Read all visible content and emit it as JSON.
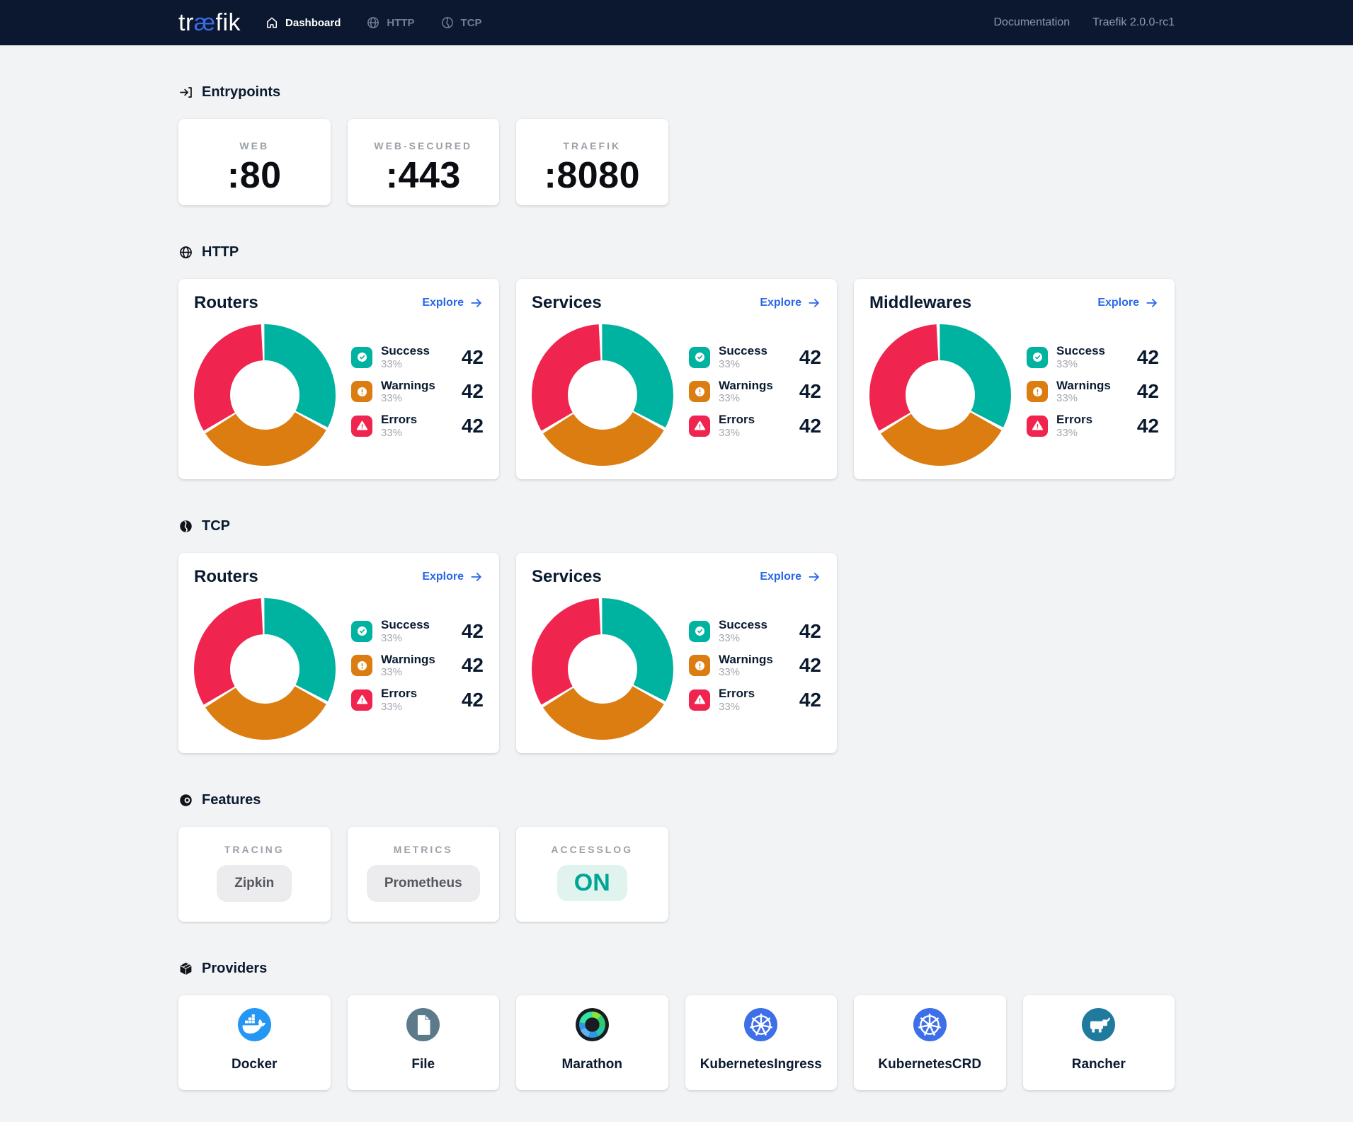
{
  "colors": {
    "header_bg": "#0b1830",
    "page_bg": "#f2f3f5",
    "accent_blue": "#2a67e8",
    "success": "#00b2a0",
    "warning": "#db7d11",
    "error": "#f0254f",
    "on_text": "#00a693",
    "on_bg": "#e1f3ef",
    "docker_blue": "#2496f3",
    "file_slate": "#5c7a8a",
    "kubernetes_blue": "#3d6fe8",
    "rancher_teal": "#1f7a9e"
  },
  "header": {
    "logo_pre": "tr",
    "logo_ae": "æ",
    "logo_post": "fik",
    "nav": [
      {
        "label": "Dashboard",
        "icon": "home-icon",
        "active": true
      },
      {
        "label": "HTTP",
        "icon": "globe-icon",
        "active": false
      },
      {
        "label": "TCP",
        "icon": "tcp-icon",
        "active": false
      }
    ],
    "doc_link": "Documentation",
    "version": "Traefik 2.0.0-rc1"
  },
  "sections": {
    "entrypoints": {
      "title": "Entrypoints",
      "icon": "entrypoints-icon",
      "cards": [
        {
          "label": "WEB",
          "value": ":80"
        },
        {
          "label": "WEB-SECURED",
          "value": ":443"
        },
        {
          "label": "TRAEFIK",
          "value": ":8080"
        }
      ]
    },
    "http": {
      "title": "HTTP",
      "icon": "globe-icon",
      "cards": [
        {
          "title": "Routers",
          "explore_label": "Explore",
          "chart": 0
        },
        {
          "title": "Services",
          "explore_label": "Explore",
          "chart": 1
        },
        {
          "title": "Middlewares",
          "explore_label": "Explore",
          "chart": 2
        }
      ]
    },
    "tcp": {
      "title": "TCP",
      "icon": "tcp-icon",
      "cards": [
        {
          "title": "Routers",
          "explore_label": "Explore",
          "chart": 3
        },
        {
          "title": "Services",
          "explore_label": "Explore",
          "chart": 4
        }
      ]
    },
    "features": {
      "title": "Features",
      "icon": "toggle-icon",
      "cards": [
        {
          "label": "TRACING",
          "value": "Zipkin",
          "state": "neutral"
        },
        {
          "label": "METRICS",
          "value": "Prometheus",
          "state": "neutral"
        },
        {
          "label": "ACCESSLOG",
          "value": "ON",
          "state": "on"
        }
      ]
    },
    "providers": {
      "title": "Providers",
      "icon": "cube-icon",
      "cards": [
        {
          "label": "Docker",
          "icon": "docker-icon"
        },
        {
          "label": "File",
          "icon": "file-icon"
        },
        {
          "label": "Marathon",
          "icon": "marathon-icon"
        },
        {
          "label": "KubernetesIngress",
          "icon": "kubernetes-icon"
        },
        {
          "label": "KubernetesCRD",
          "icon": "kubernetes-icon"
        },
        {
          "label": "Rancher",
          "icon": "rancher-icon"
        }
      ]
    }
  },
  "chart_data": [
    {
      "type": "donut",
      "section": "HTTP",
      "title": "Routers",
      "legend_position": "right",
      "series": [
        {
          "name": "Success",
          "percent": "33%",
          "value": "42"
        },
        {
          "name": "Warnings",
          "percent": "33%",
          "value": "42"
        },
        {
          "name": "Errors",
          "percent": "33%",
          "value": "42"
        }
      ]
    },
    {
      "type": "donut",
      "section": "HTTP",
      "title": "Services",
      "legend_position": "right",
      "series": [
        {
          "name": "Success",
          "percent": "33%",
          "value": "42"
        },
        {
          "name": "Warnings",
          "percent": "33%",
          "value": "42"
        },
        {
          "name": "Errors",
          "percent": "33%",
          "value": "42"
        }
      ]
    },
    {
      "type": "donut",
      "section": "HTTP",
      "title": "Middlewares",
      "legend_position": "right",
      "series": [
        {
          "name": "Success",
          "percent": "33%",
          "value": "42"
        },
        {
          "name": "Warnings",
          "percent": "33%",
          "value": "42"
        },
        {
          "name": "Errors",
          "percent": "33%",
          "value": "42"
        }
      ]
    },
    {
      "type": "donut",
      "section": "TCP",
      "title": "Routers",
      "legend_position": "right",
      "series": [
        {
          "name": "Success",
          "percent": "33%",
          "value": "42"
        },
        {
          "name": "Warnings",
          "percent": "33%",
          "value": "42"
        },
        {
          "name": "Errors",
          "percent": "33%",
          "value": "42"
        }
      ]
    },
    {
      "type": "donut",
      "section": "TCP",
      "title": "Services",
      "legend_position": "right",
      "series": [
        {
          "name": "Success",
          "percent": "33%",
          "value": "42"
        },
        {
          "name": "Warnings",
          "percent": "33%",
          "value": "42"
        },
        {
          "name": "Errors",
          "percent": "33%",
          "value": "42"
        }
      ]
    }
  ]
}
